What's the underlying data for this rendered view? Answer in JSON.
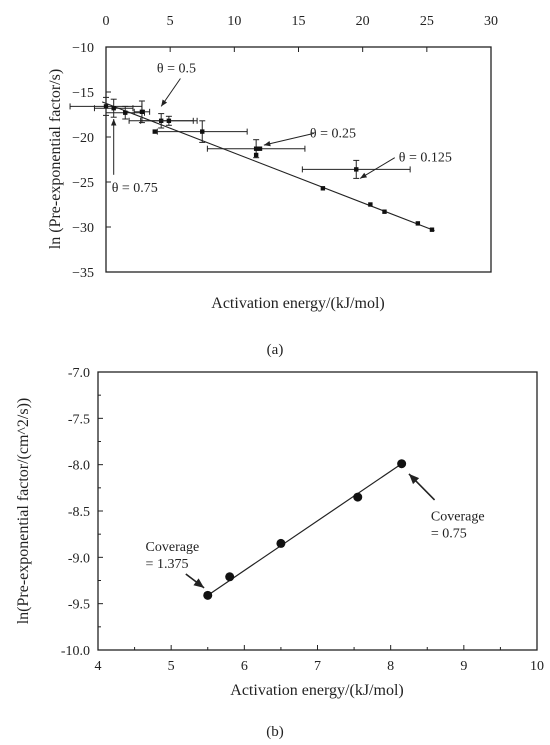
{
  "chart_data": [
    {
      "panel_label": "(a)",
      "type": "scatter",
      "xlabel": "Activation energy/(kJ/mol)",
      "ylabel": "ln (Pre-exponential factor/s)",
      "xlim": [
        0,
        30
      ],
      "ylim": [
        -35,
        -10
      ],
      "xticks": [
        "0",
        "5",
        "10",
        "15",
        "20",
        "25",
        "30"
      ],
      "yticks": [
        "−10",
        "−15",
        "−20",
        "−25",
        "−30",
        "−35"
      ],
      "x_axis_position": "top",
      "grid": false,
      "points": [
        {
          "x": 0.0,
          "y": -16.6,
          "xerr": 2.8,
          "yerr": 1.0
        },
        {
          "x": 0.6,
          "y": -16.8,
          "xerr": 1.5,
          "yerr": 1.0
        },
        {
          "x": 1.5,
          "y": -17.3,
          "xerr": 1.5,
          "yerr": 0.7
        },
        {
          "x": 2.8,
          "y": -17.2,
          "xerr": 0.6,
          "yerr": 1.2
        },
        {
          "x": 4.3,
          "y": -18.2,
          "xerr": 2.5,
          "yerr": 0.8
        },
        {
          "x": 4.9,
          "y": -18.2,
          "xerr": 2.2,
          "yerr": 0.5
        },
        {
          "x": 3.8,
          "y": -19.4,
          "xerr": 0,
          "yerr": 0
        },
        {
          "x": 7.5,
          "y": -19.4,
          "xerr": 3.5,
          "yerr": 1.2
        },
        {
          "x": 11.7,
          "y": -21.3,
          "xerr": 3.8,
          "yerr": 1.0
        },
        {
          "x": 12.0,
          "y": -21.3,
          "xerr": 0,
          "yerr": 0
        },
        {
          "x": 11.7,
          "y": -22.0,
          "xerr": 0,
          "yerr": 0
        },
        {
          "x": 19.5,
          "y": -23.6,
          "xerr": 4.2,
          "yerr": 1.0
        },
        {
          "x": 16.9,
          "y": -25.7,
          "xerr": 0,
          "yerr": 0
        },
        {
          "x": 20.6,
          "y": -27.5,
          "xerr": 0,
          "yerr": 0
        },
        {
          "x": 21.7,
          "y": -28.3,
          "xerr": 0,
          "yerr": 0
        },
        {
          "x": 24.3,
          "y": -29.6,
          "xerr": 0,
          "yerr": 0
        },
        {
          "x": 25.4,
          "y": -30.3,
          "xerr": 0,
          "yerr": 0
        }
      ],
      "fit_line": {
        "x": [
          -0.3,
          25.6
        ],
        "y": [
          -16.1,
          -30.4
        ]
      },
      "annotations": [
        {
          "text": "θ = 0.5",
          "tail": [
            5.8,
            -13.5
          ],
          "head": [
            4.3,
            -16.6
          ]
        },
        {
          "text": "θ = 0.75",
          "tail": [
            0.6,
            -24.2
          ],
          "head": [
            0.6,
            -18.0
          ]
        },
        {
          "text": "θ = 0.25",
          "tail": [
            16.2,
            -19.6
          ],
          "head": [
            12.3,
            -20.9
          ]
        },
        {
          "text": "θ = 0.125",
          "tail": [
            22.5,
            -22.3
          ],
          "head": [
            19.8,
            -24.6
          ]
        }
      ]
    },
    {
      "panel_label": "(b)",
      "type": "scatter",
      "xlabel": "Activation energy/(kJ/mol)",
      "ylabel": "ln(Pre-exponential factor/(cm^2/s))",
      "xlim": [
        4,
        10
      ],
      "ylim": [
        -10.0,
        -7.0
      ],
      "xticks": [
        "4",
        "5",
        "6",
        "7",
        "8",
        "9",
        "10"
      ],
      "yticks": [
        "-7.0",
        "-7.5",
        "-8.0",
        "-8.5",
        "-9.0",
        "-9.5",
        "-10.0"
      ],
      "grid": false,
      "points": [
        {
          "x": 5.5,
          "y": -9.41
        },
        {
          "x": 5.8,
          "y": -9.21
        },
        {
          "x": 6.5,
          "y": -8.85
        },
        {
          "x": 7.55,
          "y": -8.35
        },
        {
          "x": 8.15,
          "y": -7.99
        }
      ],
      "fit_line": {
        "x": [
          5.5,
          8.15
        ],
        "y": [
          -9.41,
          -7.99
        ]
      },
      "annotations": [
        {
          "text": "Coverage\n= 1.375",
          "tail": [
            5.2,
            -9.18
          ],
          "head": [
            5.45,
            -9.33
          ]
        },
        {
          "text": "Coverage\n= 0.75",
          "tail": [
            8.6,
            -8.38
          ],
          "head": [
            8.25,
            -8.1
          ]
        }
      ]
    }
  ]
}
